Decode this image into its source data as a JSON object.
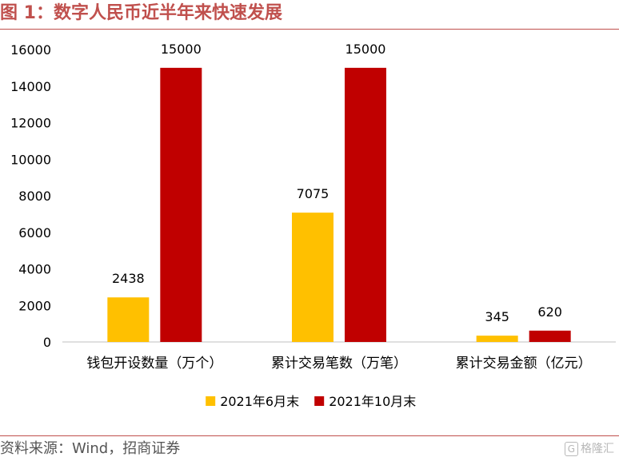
{
  "title": "图 1：数字人民币近半年来快速发展",
  "source": "资料来源：Wind，招商证券",
  "watermark": {
    "icon": "G",
    "text": "格隆汇"
  },
  "colors": {
    "title": "#C0504D",
    "series1": "#FFC000",
    "series2": "#C00000"
  },
  "chart_data": {
    "type": "bar",
    "categories": [
      "钱包开设数量（万个）",
      "累计交易笔数（万笔）",
      "累计交易金额（亿元）"
    ],
    "series": [
      {
        "name": "2021年6月末",
        "values": [
          2438,
          7075,
          345
        ],
        "color": "#FFC000"
      },
      {
        "name": "2021年10月末",
        "values": [
          15000,
          15000,
          620
        ],
        "color": "#C00000"
      }
    ],
    "ylim": [
      0,
      16000
    ],
    "yticks": [
      0,
      2000,
      4000,
      6000,
      8000,
      10000,
      12000,
      14000,
      16000
    ],
    "grid": false,
    "data_labels": true,
    "legend_position": "bottom"
  }
}
